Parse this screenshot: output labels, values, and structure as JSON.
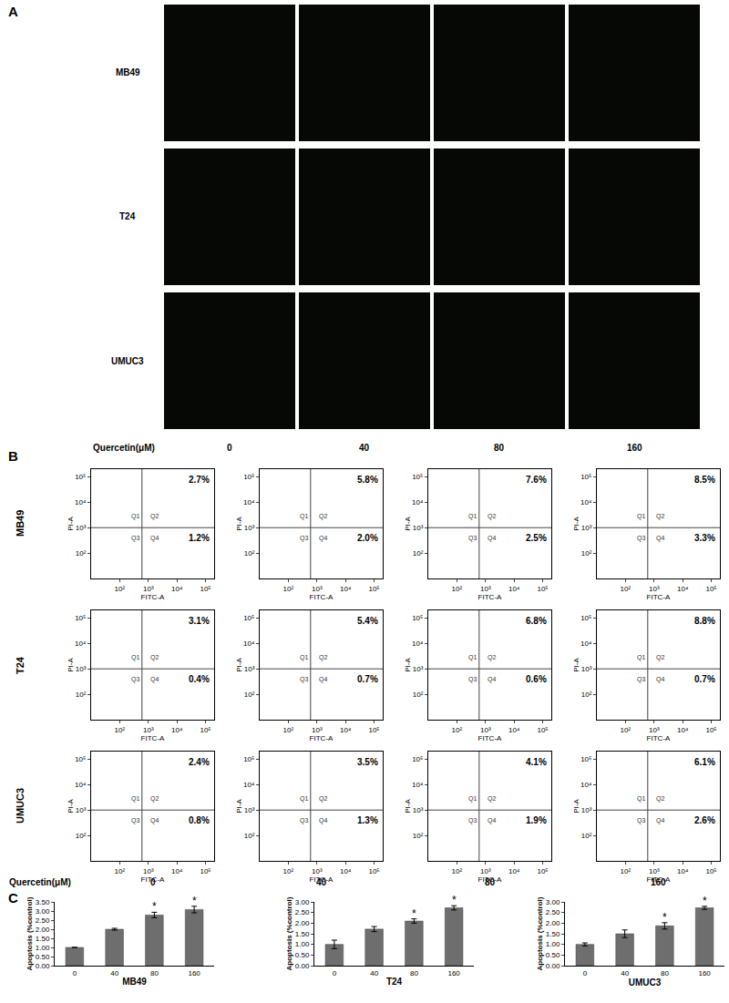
{
  "panel_labels": [
    "A",
    "B",
    "C"
  ],
  "panel_a": {
    "rows": [
      "MB49",
      "T24",
      "UMUC3"
    ],
    "columns": [
      "0",
      "40",
      "80",
      "160"
    ],
    "column_label": "Quercetin(μM)"
  },
  "panel_b": {
    "rows": [
      "MB49",
      "T24",
      "UMUC3"
    ],
    "columns": [
      "0",
      "40",
      "80",
      "160"
    ],
    "column_label": "Quercetin(μM)"
  },
  "chart_data": [
    {
      "type": "flow",
      "x_label": "FITC-A",
      "y_label": "PI-A",
      "log": true,
      "xlim": [
        10,
        200000
      ],
      "ylim": [
        10,
        200000
      ],
      "xticks": [
        {
          "value": 100,
          "label": "10²"
        },
        {
          "value": 1000,
          "label": "10³"
        },
        {
          "value": 10000,
          "label": "10⁴"
        },
        {
          "value": 100000,
          "label": "10⁵"
        }
      ],
      "yticks": [
        {
          "value": 100,
          "label": "10²"
        },
        {
          "value": 1000,
          "label": "10³"
        },
        {
          "value": 10000,
          "label": "10⁴"
        },
        {
          "value": 100000,
          "label": "10⁵"
        }
      ],
      "quadrant": {
        "x": 600,
        "y": 1000
      },
      "quadrant_names": [
        "Q1",
        "Q2",
        "Q3",
        "Q4"
      ],
      "q2": {
        "value": 2.7,
        "label": "2.7%"
      },
      "q4": {
        "value": 1.2,
        "label": "1.2%"
      }
    },
    {
      "type": "flow",
      "x_label": "FITC-A",
      "y_label": "PI-A",
      "log": true,
      "xlim": [
        10,
        200000
      ],
      "ylim": [
        10,
        200000
      ],
      "xticks": [
        {
          "value": 100,
          "label": "10²"
        },
        {
          "value": 1000,
          "label": "10³"
        },
        {
          "value": 10000,
          "label": "10⁴"
        },
        {
          "value": 100000,
          "label": "10⁵"
        }
      ],
      "yticks": [
        {
          "value": 100,
          "label": "10²"
        },
        {
          "value": 1000,
          "label": "10³"
        },
        {
          "value": 10000,
          "label": "10⁴"
        },
        {
          "value": 100000,
          "label": "10⁵"
        }
      ],
      "quadrant": {
        "x": 600,
        "y": 1000
      },
      "quadrant_names": [
        "Q1",
        "Q2",
        "Q3",
        "Q4"
      ],
      "q2": {
        "value": 5.8,
        "label": "5.8%"
      },
      "q4": {
        "value": 2.0,
        "label": "2.0%"
      }
    },
    {
      "type": "flow",
      "x_label": "FITC-A",
      "y_label": "PI-A",
      "log": true,
      "xlim": [
        10,
        200000
      ],
      "ylim": [
        10,
        200000
      ],
      "xticks": [
        {
          "value": 100,
          "label": "10²"
        },
        {
          "value": 1000,
          "label": "10³"
        },
        {
          "value": 10000,
          "label": "10⁴"
        },
        {
          "value": 100000,
          "label": "10⁵"
        }
      ],
      "yticks": [
        {
          "value": 100,
          "label": "10²"
        },
        {
          "value": 1000,
          "label": "10³"
        },
        {
          "value": 10000,
          "label": "10⁴"
        },
        {
          "value": 100000,
          "label": "10⁵"
        }
      ],
      "quadrant": {
        "x": 600,
        "y": 1000
      },
      "quadrant_names": [
        "Q1",
        "Q2",
        "Q3",
        "Q4"
      ],
      "q2": {
        "value": 7.6,
        "label": "7.6%"
      },
      "q4": {
        "value": 2.5,
        "label": "2.5%"
      }
    },
    {
      "type": "flow",
      "x_label": "FITC-A",
      "y_label": "PI-A",
      "log": true,
      "xlim": [
        10,
        200000
      ],
      "ylim": [
        10,
        200000
      ],
      "xticks": [
        {
          "value": 100,
          "label": "10²"
        },
        {
          "value": 1000,
          "label": "10³"
        },
        {
          "value": 10000,
          "label": "10⁴"
        },
        {
          "value": 100000,
          "label": "10⁵"
        }
      ],
      "yticks": [
        {
          "value": 100,
          "label": "10²"
        },
        {
          "value": 1000,
          "label": "10³"
        },
        {
          "value": 10000,
          "label": "10⁴"
        },
        {
          "value": 100000,
          "label": "10⁵"
        }
      ],
      "quadrant": {
        "x": 600,
        "y": 1000
      },
      "quadrant_names": [
        "Q1",
        "Q2",
        "Q3",
        "Q4"
      ],
      "q2": {
        "value": 8.5,
        "label": "8.5%"
      },
      "q4": {
        "value": 3.3,
        "label": "3.3%"
      }
    },
    {
      "type": "flow",
      "x_label": "FITC-A",
      "y_label": "PI-A",
      "log": true,
      "xlim": [
        10,
        200000
      ],
      "ylim": [
        10,
        200000
      ],
      "xticks": [
        {
          "value": 100,
          "label": "10²"
        },
        {
          "value": 1000,
          "label": "10³"
        },
        {
          "value": 10000,
          "label": "10⁴"
        },
        {
          "value": 100000,
          "label": "10⁵"
        }
      ],
      "yticks": [
        {
          "value": 100,
          "label": "10²"
        },
        {
          "value": 1000,
          "label": "10³"
        },
        {
          "value": 10000,
          "label": "10⁴"
        },
        {
          "value": 100000,
          "label": "10⁵"
        }
      ],
      "quadrant": {
        "x": 600,
        "y": 1000
      },
      "quadrant_names": [
        "Q1",
        "Q2",
        "Q3",
        "Q4"
      ],
      "q2": {
        "value": 3.1,
        "label": "3.1%"
      },
      "q4": {
        "value": 0.4,
        "label": "0.4%"
      }
    },
    {
      "type": "flow",
      "x_label": "FITC-A",
      "y_label": "PI-A",
      "log": true,
      "xlim": [
        10,
        200000
      ],
      "ylim": [
        10,
        200000
      ],
      "xticks": [
        {
          "value": 100,
          "label": "10²"
        },
        {
          "value": 1000,
          "label": "10³"
        },
        {
          "value": 10000,
          "label": "10⁴"
        },
        {
          "value": 100000,
          "label": "10⁵"
        }
      ],
      "yticks": [
        {
          "value": 100,
          "label": "10²"
        },
        {
          "value": 1000,
          "label": "10³"
        },
        {
          "value": 10000,
          "label": "10⁴"
        },
        {
          "value": 100000,
          "label": "10⁵"
        }
      ],
      "quadrant": {
        "x": 600,
        "y": 1000
      },
      "quadrant_names": [
        "Q1",
        "Q2",
        "Q3",
        "Q4"
      ],
      "q2": {
        "value": 5.4,
        "label": "5.4%"
      },
      "q4": {
        "value": 0.7,
        "label": "0.7%"
      }
    },
    {
      "type": "flow",
      "x_label": "FITC-A",
      "y_label": "PI-A",
      "log": true,
      "xlim": [
        10,
        200000
      ],
      "ylim": [
        10,
        200000
      ],
      "xticks": [
        {
          "value": 100,
          "label": "10²"
        },
        {
          "value": 1000,
          "label": "10³"
        },
        {
          "value": 10000,
          "label": "10⁴"
        },
        {
          "value": 100000,
          "label": "10⁵"
        }
      ],
      "yticks": [
        {
          "value": 100,
          "label": "10²"
        },
        {
          "value": 1000,
          "label": "10³"
        },
        {
          "value": 10000,
          "label": "10⁴"
        },
        {
          "value": 100000,
          "label": "10⁵"
        }
      ],
      "quadrant": {
        "x": 600,
        "y": 1000
      },
      "quadrant_names": [
        "Q1",
        "Q2",
        "Q3",
        "Q4"
      ],
      "q2": {
        "value": 6.8,
        "label": "6.8%"
      },
      "q4": {
        "value": 0.6,
        "label": "0.6%"
      }
    },
    {
      "type": "flow",
      "x_label": "FITC-A",
      "y_label": "PI-A",
      "log": true,
      "xlim": [
        10,
        200000
      ],
      "ylim": [
        10,
        200000
      ],
      "xticks": [
        {
          "value": 100,
          "label": "10²"
        },
        {
          "value": 1000,
          "label": "10³"
        },
        {
          "value": 10000,
          "label": "10⁴"
        },
        {
          "value": 100000,
          "label": "10⁵"
        }
      ],
      "yticks": [
        {
          "value": 100,
          "label": "10²"
        },
        {
          "value": 1000,
          "label": "10³"
        },
        {
          "value": 10000,
          "label": "10⁴"
        },
        {
          "value": 100000,
          "label": "10⁵"
        }
      ],
      "quadrant": {
        "x": 600,
        "y": 1000
      },
      "quadrant_names": [
        "Q1",
        "Q2",
        "Q3",
        "Q4"
      ],
      "q2": {
        "value": 8.8,
        "label": "8.8%"
      },
      "q4": {
        "value": 0.7,
        "label": "0.7%"
      }
    },
    {
      "type": "flow",
      "x_label": "FITC-A",
      "y_label": "PI-A",
      "log": true,
      "xlim": [
        10,
        200000
      ],
      "ylim": [
        10,
        200000
      ],
      "xticks": [
        {
          "value": 100,
          "label": "10²"
        },
        {
          "value": 1000,
          "label": "10³"
        },
        {
          "value": 10000,
          "label": "10⁴"
        },
        {
          "value": 100000,
          "label": "10⁵"
        }
      ],
      "yticks": [
        {
          "value": 100,
          "label": "10²"
        },
        {
          "value": 1000,
          "label": "10³"
        },
        {
          "value": 10000,
          "label": "10⁴"
        },
        {
          "value": 100000,
          "label": "10⁵"
        }
      ],
      "quadrant": {
        "x": 600,
        "y": 1000
      },
      "quadrant_names": [
        "Q1",
        "Q2",
        "Q3",
        "Q4"
      ],
      "q2": {
        "value": 2.4,
        "label": "2.4%"
      },
      "q4": {
        "value": 0.8,
        "label": "0.8%"
      }
    },
    {
      "type": "flow",
      "x_label": "FITC-A",
      "y_label": "PI-A",
      "log": true,
      "xlim": [
        10,
        200000
      ],
      "ylim": [
        10,
        200000
      ],
      "xticks": [
        {
          "value": 100,
          "label": "10²"
        },
        {
          "value": 1000,
          "label": "10³"
        },
        {
          "value": 10000,
          "label": "10⁴"
        },
        {
          "value": 100000,
          "label": "10⁵"
        }
      ],
      "yticks": [
        {
          "value": 100,
          "label": "10²"
        },
        {
          "value": 1000,
          "label": "10³"
        },
        {
          "value": 10000,
          "label": "10⁴"
        },
        {
          "value": 100000,
          "label": "10⁵"
        }
      ],
      "quadrant": {
        "x": 600,
        "y": 1000
      },
      "quadrant_names": [
        "Q1",
        "Q2",
        "Q3",
        "Q4"
      ],
      "q2": {
        "value": 3.5,
        "label": "3.5%"
      },
      "q4": {
        "value": 1.3,
        "label": "1.3%"
      }
    },
    {
      "type": "flow",
      "x_label": "FITC-A",
      "y_label": "PI-A",
      "log": true,
      "xlim": [
        10,
        200000
      ],
      "ylim": [
        10,
        200000
      ],
      "xticks": [
        {
          "value": 100,
          "label": "10²"
        },
        {
          "value": 1000,
          "label": "10³"
        },
        {
          "value": 10000,
          "label": "10⁴"
        },
        {
          "value": 100000,
          "label": "10⁵"
        }
      ],
      "yticks": [
        {
          "value": 100,
          "label": "10²"
        },
        {
          "value": 1000,
          "label": "10³"
        },
        {
          "value": 10000,
          "label": "10⁴"
        },
        {
          "value": 100000,
          "label": "10⁵"
        }
      ],
      "quadrant": {
        "x": 600,
        "y": 1000
      },
      "quadrant_names": [
        "Q1",
        "Q2",
        "Q3",
        "Q4"
      ],
      "q2": {
        "value": 4.1,
        "label": "4.1%"
      },
      "q4": {
        "value": 1.9,
        "label": "1.9%"
      }
    },
    {
      "type": "flow",
      "x_label": "FITC-A",
      "y_label": "PI-A",
      "log": true,
      "xlim": [
        10,
        200000
      ],
      "ylim": [
        10,
        200000
      ],
      "xticks": [
        {
          "value": 100,
          "label": "10²"
        },
        {
          "value": 1000,
          "label": "10³"
        },
        {
          "value": 10000,
          "label": "10⁴"
        },
        {
          "value": 100000,
          "label": "10⁵"
        }
      ],
      "yticks": [
        {
          "value": 100,
          "label": "10²"
        },
        {
          "value": 1000,
          "label": "10³"
        },
        {
          "value": 10000,
          "label": "10⁴"
        },
        {
          "value": 100000,
          "label": "10⁵"
        }
      ],
      "quadrant": {
        "x": 600,
        "y": 1000
      },
      "quadrant_names": [
        "Q1",
        "Q2",
        "Q3",
        "Q4"
      ],
      "q2": {
        "value": 6.1,
        "label": "6.1%"
      },
      "q4": {
        "value": 2.6,
        "label": "2.6%"
      }
    },
    {
      "type": "bar",
      "x_label": "MB49",
      "y_label": "Apoptosis (%control)",
      "categories": [
        "0",
        "40",
        "80",
        "160"
      ],
      "values": [
        1.0,
        2.0,
        2.78,
        3.08
      ],
      "errors": [
        0.0,
        0.05,
        0.15,
        0.18
      ],
      "color": "#6e6e6e",
      "grid": false,
      "ylim": [
        0,
        3.5
      ],
      "yticks": [
        {
          "value": 0,
          "label": "0.00"
        },
        {
          "value": 0.5,
          "label": "0.50"
        },
        {
          "value": 1,
          "label": "1.00"
        },
        {
          "value": 1.5,
          "label": "1.50"
        },
        {
          "value": 2,
          "label": "2.00"
        },
        {
          "value": 2.5,
          "label": "2.50"
        },
        {
          "value": 3,
          "label": "3.00"
        },
        {
          "value": 3.5,
          "label": "3.50"
        }
      ],
      "annotations": [
        {
          "category": "80",
          "text": "*"
        },
        {
          "category": "160",
          "text": "*"
        }
      ]
    },
    {
      "type": "bar",
      "x_label": "T24",
      "y_label": "Apoptosis (%control)",
      "categories": [
        "0",
        "40",
        "80",
        "160"
      ],
      "values": [
        1.0,
        1.72,
        2.1,
        2.72
      ],
      "errors": [
        0.2,
        0.12,
        0.1,
        0.1
      ],
      "color": "#6e6e6e",
      "grid": false,
      "ylim": [
        0,
        3
      ],
      "yticks": [
        {
          "value": 0,
          "label": "0.00"
        },
        {
          "value": 0.5,
          "label": "0.50"
        },
        {
          "value": 1,
          "label": "1.00"
        },
        {
          "value": 1.5,
          "label": "1.50"
        },
        {
          "value": 2,
          "label": "2.00"
        },
        {
          "value": 2.5,
          "label": "2.50"
        },
        {
          "value": 3,
          "label": "3.00"
        }
      ],
      "annotations": [
        {
          "category": "80",
          "text": "*"
        },
        {
          "category": "160",
          "text": "*"
        }
      ]
    },
    {
      "type": "bar",
      "x_label": "UMUC3",
      "y_label": "Apoptosis (%control)",
      "categories": [
        "0",
        "40",
        "80",
        "160"
      ],
      "values": [
        1.0,
        1.5,
        1.87,
        2.72
      ],
      "errors": [
        0.07,
        0.18,
        0.15,
        0.07
      ],
      "color": "#6e6e6e",
      "grid": false,
      "ylim": [
        0,
        3
      ],
      "yticks": [
        {
          "value": 0,
          "label": "0.00"
        },
        {
          "value": 0.5,
          "label": "0.50"
        },
        {
          "value": 1,
          "label": "1.00"
        },
        {
          "value": 1.5,
          "label": "1.50"
        },
        {
          "value": 2,
          "label": "2.00"
        },
        {
          "value": 2.5,
          "label": "2.50"
        },
        {
          "value": 3,
          "label": "3.00"
        }
      ],
      "annotations": [
        {
          "category": "80",
          "text": "*"
        },
        {
          "category": "160",
          "text": "*"
        }
      ]
    }
  ]
}
